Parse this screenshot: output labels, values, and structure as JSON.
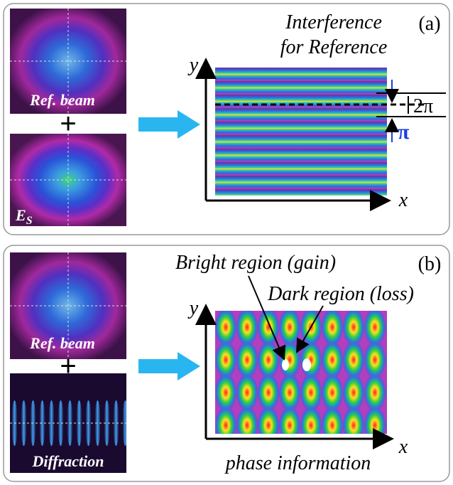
{
  "panels": [
    {
      "label": "(a)",
      "title_lines": [
        "Interference",
        "for Reference"
      ],
      "inputs": [
        {
          "label": "Ref. beam"
        },
        {
          "label": "E",
          "label_sub": "S"
        }
      ],
      "plus": "+",
      "x_label": "x",
      "y_label": "y",
      "annotations": [
        "2π",
        "π"
      ]
    },
    {
      "label": "(b)",
      "caption": "phase information",
      "inputs": [
        {
          "label": "Ref. beam"
        },
        {
          "label": "Diffraction"
        }
      ],
      "plus": "+",
      "x_label": "x",
      "y_label": "y",
      "annotations": [
        "Bright region (gain)",
        "Dark region (loss)"
      ]
    }
  ]
}
